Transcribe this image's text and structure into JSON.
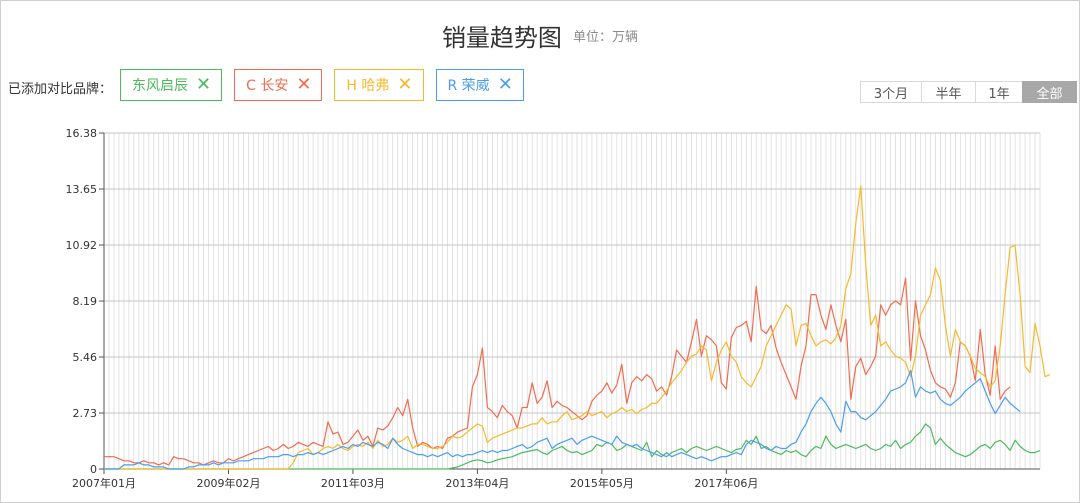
{
  "header": {
    "title": "销量趋势图",
    "unit": "单位：万辆"
  },
  "compare": {
    "label": "已添加对比品牌：",
    "brands": [
      {
        "text": "东风启辰",
        "color": "#4cbb5e"
      },
      {
        "text": "C 长安",
        "color": "#f26b50"
      },
      {
        "text": "H 哈弗",
        "color": "#f7b92a"
      },
      {
        "text": "R 荣威",
        "color": "#4a9ef0"
      }
    ],
    "remove_glyph": "✕"
  },
  "range": {
    "buttons": [
      "3个月",
      "半年",
      "1年",
      "全部"
    ],
    "active": 3
  },
  "chart_data": {
    "type": "line",
    "x_start": "2007-01",
    "x_ticks": [
      "2007年01月",
      "2009年02月",
      "2011年03月",
      "2013年04月",
      "2015年05月",
      "2017年06月"
    ],
    "y_ticks": [
      "0",
      "2.73",
      "5.46",
      "8.19",
      "10.92",
      "13.65",
      "16.38"
    ],
    "ylim": [
      0,
      16.38
    ],
    "grid": true,
    "series": [
      {
        "name": "东风启辰",
        "color": "#4cbb5e",
        "values": [
          0,
          0,
          0,
          0,
          0,
          0,
          0,
          0,
          0,
          0,
          0,
          0,
          0,
          0,
          0,
          0,
          0,
          0,
          0,
          0,
          0,
          0,
          0,
          0,
          0,
          0,
          0,
          0,
          0,
          0,
          0,
          0,
          0,
          0,
          0,
          0,
          0,
          0,
          0,
          0,
          0,
          0,
          0,
          0,
          0,
          0,
          0,
          0,
          0,
          0,
          0,
          0,
          0,
          0,
          0,
          0,
          0,
          0,
          0,
          0,
          0,
          0,
          0,
          0,
          0,
          0,
          0,
          0,
          0,
          0,
          0.05,
          0.1,
          0.2,
          0.3,
          0.4,
          0.45,
          0.4,
          0.3,
          0.35,
          0.45,
          0.5,
          0.55,
          0.6,
          0.7,
          0.8,
          0.85,
          0.9,
          0.95,
          0.8,
          0.7,
          0.9,
          1.0,
          1.1,
          0.9,
          0.8,
          0.85,
          0.7,
          0.8,
          0.9,
          1.2,
          1.1,
          1.3,
          1.2,
          0.9,
          1.0,
          1.2,
          1.1,
          1.0,
          0.9,
          1.3,
          0.6,
          0.9,
          0.7,
          0.6,
          0.8,
          0.9,
          1.0,
          0.8,
          1.0,
          1.1,
          1.0,
          0.9,
          1.0,
          1.1,
          1.0,
          0.9,
          0.8,
          0.95,
          1.0,
          1.4,
          1.2,
          1.6,
          1.0,
          1.1,
          0.9,
          0.8,
          0.7,
          0.9,
          0.8,
          0.9,
          0.7,
          0.6,
          0.9,
          1.1,
          1.0,
          1.6,
          1.2,
          1.0,
          1.1,
          1.2,
          1.1,
          1.0,
          1.1,
          1.2,
          1.0,
          0.9,
          1.0,
          1.2,
          1.1,
          1.4,
          1.0,
          1.2,
          1.3,
          1.6,
          1.8,
          2.2,
          2.0,
          1.2,
          1.5,
          1.2,
          1.0,
          0.8,
          0.7,
          0.6,
          0.7,
          0.9,
          1.1,
          1.2,
          1.0,
          1.3,
          1.4,
          1.2,
          0.9,
          1.4,
          1.1,
          0.9,
          0.8,
          0.8,
          0.9
        ]
      },
      {
        "name": "C 长安",
        "color": "#f26b50",
        "values": [
          0.6,
          0.6,
          0.6,
          0.5,
          0.4,
          0.4,
          0.3,
          0.3,
          0.4,
          0.3,
          0.3,
          0.2,
          0.3,
          0.2,
          0.6,
          0.5,
          0.5,
          0.4,
          0.3,
          0.3,
          0.2,
          0.3,
          0.4,
          0.3,
          0.3,
          0.5,
          0.4,
          0.5,
          0.6,
          0.7,
          0.8,
          0.9,
          1.0,
          1.1,
          0.9,
          1.0,
          1.2,
          1.0,
          1.1,
          1.3,
          1.2,
          1.1,
          1.3,
          1.2,
          1.1,
          2.3,
          1.7,
          1.8,
          1.2,
          1.3,
          1.6,
          1.9,
          1.4,
          1.6,
          1.1,
          2.0,
          1.9,
          2.1,
          2.5,
          3.0,
          2.6,
          3.4,
          2.0,
          1.1,
          1.3,
          1.2,
          1.0,
          1.1,
          1.0,
          1.5,
          1.6,
          1.8,
          1.9,
          2.0,
          4.0,
          4.6,
          5.9,
          3.0,
          2.8,
          2.5,
          3.1,
          2.8,
          2.6,
          2.0,
          3.0,
          3.0,
          4.2,
          3.2,
          3.5,
          4.3,
          3.0,
          3.3,
          3.1,
          3.0,
          2.8,
          2.6,
          2.4,
          2.6,
          3.3,
          3.6,
          3.8,
          4.2,
          3.7,
          4.1,
          5.1,
          3.2,
          4.2,
          4.5,
          4.3,
          4.6,
          4.4,
          3.8,
          4.0,
          3.6,
          4.5,
          5.8,
          5.5,
          5.2,
          6.2,
          7.3,
          5.5,
          6.5,
          6.3,
          6.0,
          4.2,
          3.9,
          6.4,
          6.9,
          7.0,
          7.2,
          6.2,
          8.9,
          6.8,
          6.6,
          7.0,
          5.9,
          5.2,
          4.6,
          4.0,
          3.4,
          5.0,
          6.0,
          8.5,
          8.5,
          7.5,
          6.8,
          8.0,
          7.0,
          6.2,
          7.3,
          3.4,
          5.0,
          5.4,
          4.6,
          5.0,
          5.5,
          8.0,
          7.5,
          8.0,
          8.2,
          8.0,
          9.3,
          5.3,
          8.2,
          6.5,
          5.8,
          4.8,
          4.2,
          4.0,
          3.9,
          3.5,
          4.2,
          6.2,
          6.0,
          5.5,
          4.3,
          6.8,
          4.6,
          3.6,
          6.0,
          3.4,
          3.8,
          4.0
        ]
      },
      {
        "name": "H 哈弗",
        "color": "#f7b92a",
        "values": [
          0,
          0,
          0,
          0,
          0,
          0,
          0,
          0,
          0,
          0,
          0,
          0,
          0,
          0,
          0,
          0,
          0,
          0,
          0,
          0,
          0,
          0,
          0,
          0,
          0,
          0,
          0,
          0,
          0,
          0,
          0,
          0,
          0,
          0,
          0,
          0,
          0,
          0,
          0.3,
          0.8,
          0.9,
          1.0,
          0.7,
          0.8,
          1.0,
          1.1,
          1.0,
          1.2,
          1.0,
          0.9,
          1.1,
          1.2,
          1.1,
          1.3,
          1.0,
          1.4,
          1.1,
          1.2,
          1.5,
          1.3,
          1.4,
          1.6,
          1.0,
          1.2,
          1.2,
          1.1,
          1.0,
          1.0,
          1.1,
          1.3,
          1.6,
          1.5,
          1.6,
          1.8,
          2.0,
          2.2,
          2.1,
          1.3,
          1.5,
          1.6,
          1.7,
          1.8,
          1.9,
          2.0,
          2.0,
          2.1,
          2.2,
          2.2,
          2.5,
          2.2,
          2.3,
          2.3,
          2.6,
          2.8,
          2.4,
          2.5,
          2.6,
          2.8,
          2.6,
          2.7,
          2.8,
          2.5,
          2.7,
          2.8,
          3.0,
          2.8,
          2.9,
          2.7,
          2.9,
          3.0,
          3.2,
          3.2,
          3.5,
          3.8,
          4.2,
          4.5,
          4.8,
          5.2,
          5.5,
          5.6,
          6.0,
          5.8,
          4.3,
          5.2,
          5.8,
          6.2,
          5.5,
          5.2,
          4.5,
          4.2,
          4.0,
          4.5,
          5.0,
          6.0,
          6.5,
          7.0,
          7.5,
          8.0,
          7.8,
          6.0,
          7.0,
          7.1,
          6.5,
          6.0,
          6.2,
          6.3,
          6.1,
          6.4,
          7.0,
          8.8,
          9.5,
          12.0,
          13.8,
          10.0,
          7.0,
          7.5,
          6.0,
          6.2,
          5.8,
          5.5,
          5.4,
          5.2,
          4.5,
          5.5,
          7.5,
          8.0,
          8.5,
          9.8,
          9.2,
          7.0,
          5.5,
          6.8,
          6.2,
          6.0,
          5.5,
          4.9,
          4.7,
          4.5,
          4.0,
          4.3,
          6.0,
          8.5,
          10.8,
          10.9,
          8.5,
          5.0,
          4.7,
          7.1,
          6.0,
          4.5,
          4.6
        ]
      },
      {
        "name": "R 荣威",
        "color": "#4a9ef0",
        "values": [
          0,
          0,
          0,
          0,
          0.2,
          0.2,
          0.2,
          0.3,
          0.2,
          0.2,
          0.1,
          0.1,
          0.1,
          0,
          0,
          0,
          0,
          0.1,
          0.1,
          0.2,
          0.2,
          0.2,
          0.3,
          0.2,
          0.3,
          0.3,
          0.3,
          0.4,
          0.4,
          0.4,
          0.5,
          0.5,
          0.5,
          0.6,
          0.6,
          0.6,
          0.7,
          0.7,
          0.6,
          0.7,
          0.7,
          0.8,
          0.7,
          0.8,
          0.7,
          0.8,
          0.9,
          1.0,
          1.1,
          1.0,
          1.2,
          1.1,
          1.3,
          1.2,
          1.1,
          1.3,
          1.2,
          1.0,
          1.5,
          1.2,
          1.0,
          0.9,
          0.8,
          0.7,
          0.7,
          0.6,
          0.7,
          0.6,
          0.7,
          0.8,
          0.6,
          0.7,
          0.6,
          0.7,
          0.7,
          0.8,
          0.9,
          0.8,
          0.9,
          0.8,
          0.9,
          0.9,
          1.0,
          1.1,
          1.2,
          1.0,
          1.1,
          1.3,
          1.4,
          1.5,
          1.0,
          1.2,
          1.3,
          1.4,
          1.5,
          1.2,
          1.4,
          1.5,
          1.6,
          1.5,
          1.4,
          1.3,
          1.2,
          1.6,
          1.3,
          1.2,
          1.1,
          1.2,
          1.0,
          0.9,
          0.8,
          0.7,
          0.6,
          0.8,
          0.6,
          0.7,
          0.8,
          0.7,
          0.6,
          0.5,
          0.6,
          0.5,
          0.4,
          0.5,
          0.6,
          0.6,
          0.7,
          0.8,
          0.7,
          1.2,
          1.4,
          1.3,
          1.2,
          1.0,
          0.9,
          1.1,
          1.0,
          1.0,
          1.2,
          1.3,
          1.8,
          2.2,
          2.8,
          3.2,
          3.5,
          3.2,
          2.8,
          2.2,
          1.8,
          3.3,
          2.8,
          2.8,
          2.5,
          2.4,
          2.6,
          2.8,
          3.1,
          3.4,
          3.8,
          3.9,
          4.0,
          4.2,
          4.8,
          3.5,
          4.0,
          3.8,
          3.7,
          3.8,
          3.4,
          3.2,
          3.1,
          3.3,
          3.5,
          3.8,
          4.0,
          4.2,
          4.4,
          3.8,
          3.2,
          2.7,
          3.1,
          3.5,
          3.2,
          3.0,
          2.8
        ]
      }
    ]
  }
}
